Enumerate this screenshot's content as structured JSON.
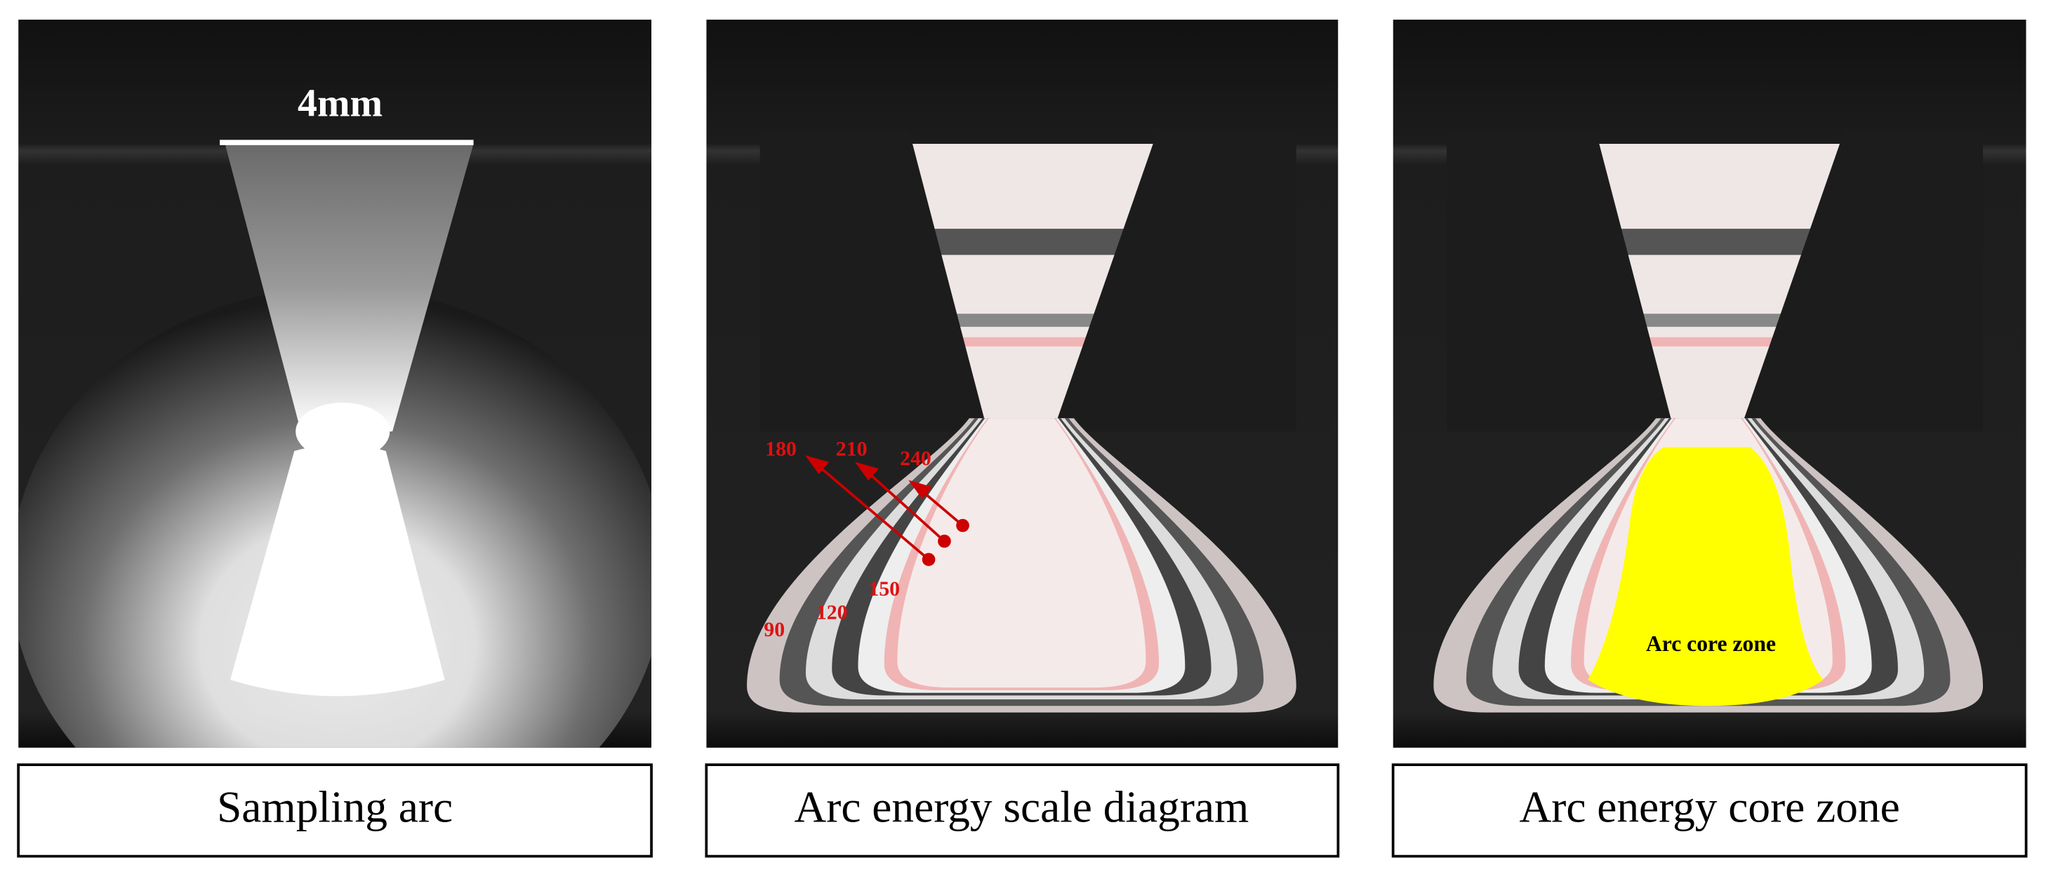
{
  "panels": [
    {
      "caption": "Sampling arc",
      "scale_label": "4mm"
    },
    {
      "caption": "Arc energy scale diagram",
      "contour_labels": [
        "180",
        "210",
        "240",
        "150",
        "120",
        "90"
      ]
    },
    {
      "caption": "Arc energy core zone",
      "zone_label": "Arc core zone"
    }
  ]
}
